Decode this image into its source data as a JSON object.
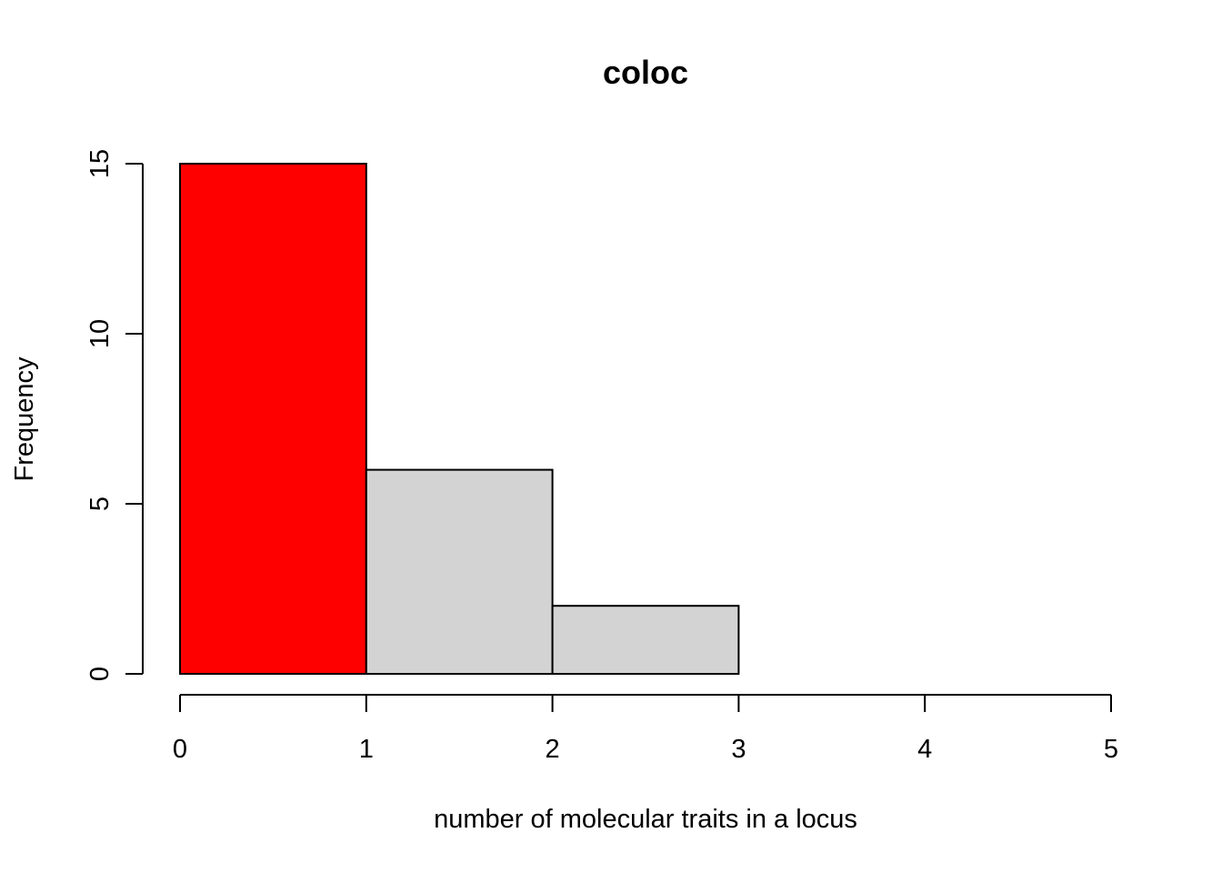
{
  "chart_data": {
    "type": "bar",
    "title": "coloc",
    "xlabel": "number of molecular traits in a locus",
    "ylabel": "Frequency",
    "bins": [
      {
        "start": 0,
        "end": 1,
        "count": 15,
        "color": "#ff0000"
      },
      {
        "start": 1,
        "end": 2,
        "count": 6,
        "color": "#d3d3d3"
      },
      {
        "start": 2,
        "end": 3,
        "count": 2,
        "color": "#d3d3d3"
      }
    ],
    "x_ticks": [
      "0",
      "1",
      "2",
      "3",
      "4",
      "5"
    ],
    "y_ticks": [
      "0",
      "5",
      "10",
      "15"
    ],
    "xlim": [
      0,
      5
    ],
    "ylim": [
      0,
      15
    ],
    "grid": false,
    "legend": "none"
  }
}
